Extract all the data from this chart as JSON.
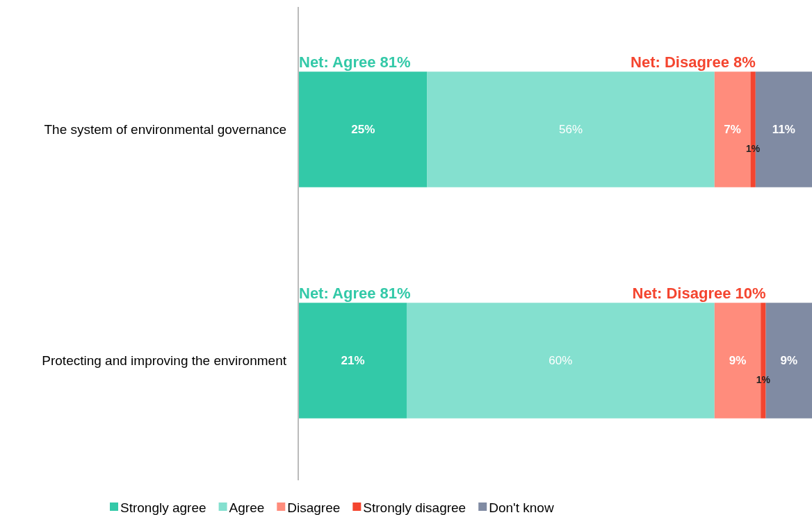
{
  "chart_data": {
    "type": "bar",
    "orientation": "horizontal",
    "stacked": true,
    "categories": [
      "The system of environmental governance",
      "Protecting and improving the environment"
    ],
    "series": [
      {
        "name": "Strongly agree",
        "color": "#33c9a8",
        "values": [
          25,
          21
        ],
        "value_labels": [
          "25%",
          "21%"
        ]
      },
      {
        "name": "Agree",
        "color": "#84e0cf",
        "values": [
          56,
          60
        ],
        "value_labels": [
          "56%",
          "60%"
        ]
      },
      {
        "name": "Disagree",
        "color": "#ff8c7c",
        "values": [
          7,
          9
        ],
        "value_labels": [
          "7%",
          "9%"
        ]
      },
      {
        "name": "Strongly disagree",
        "color": "#f4452f",
        "values": [
          1,
          1
        ],
        "value_labels": [
          "1%",
          "1%"
        ]
      },
      {
        "name": "Don't know",
        "color": "#808ba3",
        "values": [
          11,
          9
        ],
        "value_labels": [
          "11%",
          "9%"
        ]
      }
    ],
    "tick_labels": "y",
    "legend": "bottom",
    "annotations": [
      "Net: Agree 81%",
      "Net: Disagree 8%",
      "Net: Agree 81%",
      "Net: Disagree 10%"
    ]
  }
}
